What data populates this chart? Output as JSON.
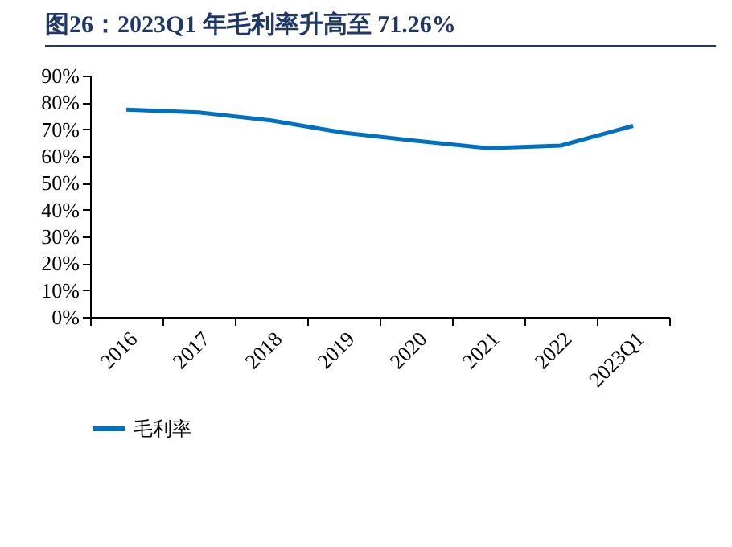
{
  "chart_data": {
    "type": "line",
    "title": "图26：2023Q1 年毛利率升高至 71.26%",
    "categories": [
      "2016",
      "2017",
      "2018",
      "2019",
      "2020",
      "2021",
      "2022",
      "2023Q1"
    ],
    "series": [
      {
        "name": "毛利率",
        "color": "#0070c0",
        "values": [
          77.3,
          76.3,
          73.3,
          68.7,
          65.7,
          62.9,
          63.9,
          71.26
        ]
      }
    ],
    "ylim": [
      0,
      90
    ],
    "yticks": [
      {
        "value": 0,
        "label": "0%"
      },
      {
        "value": 10,
        "label": "10%"
      },
      {
        "value": 20,
        "label": "20%"
      },
      {
        "value": 30,
        "label": "30%"
      },
      {
        "value": 40,
        "label": "40%"
      },
      {
        "value": 50,
        "label": "50%"
      },
      {
        "value": 60,
        "label": "60%"
      },
      {
        "value": 70,
        "label": "70%"
      },
      {
        "value": 80,
        "label": "80%"
      },
      {
        "value": 90,
        "label": "90%"
      }
    ],
    "grid": false,
    "legend": "bottom",
    "marker": "none",
    "line_style": "solid"
  }
}
